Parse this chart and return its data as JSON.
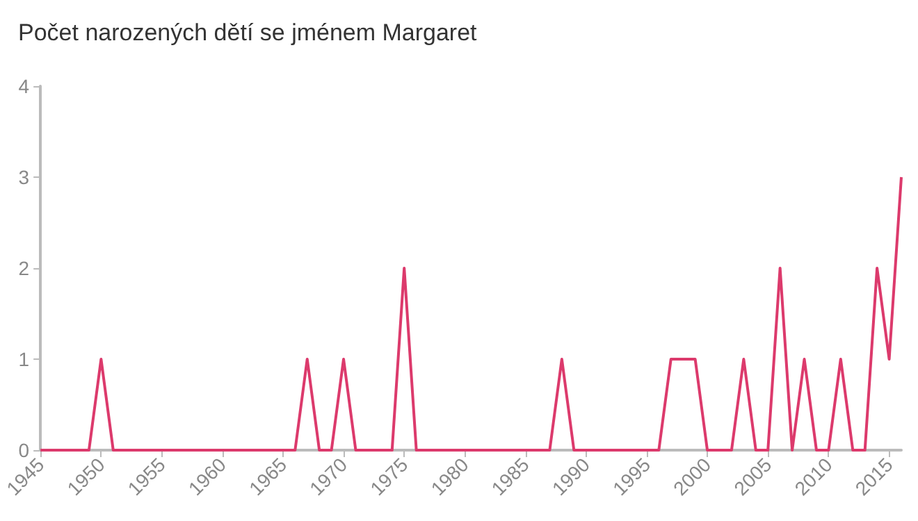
{
  "chart_data": {
    "type": "line",
    "title": "Počet narozených dětí se jménem Margaret",
    "x": [
      1945,
      1946,
      1947,
      1948,
      1949,
      1950,
      1951,
      1952,
      1953,
      1954,
      1955,
      1956,
      1957,
      1958,
      1959,
      1960,
      1961,
      1962,
      1963,
      1964,
      1965,
      1966,
      1967,
      1968,
      1969,
      1970,
      1971,
      1972,
      1973,
      1974,
      1975,
      1976,
      1977,
      1978,
      1979,
      1980,
      1981,
      1982,
      1983,
      1984,
      1985,
      1986,
      1987,
      1988,
      1989,
      1990,
      1991,
      1992,
      1993,
      1994,
      1995,
      1996,
      1997,
      1998,
      1999,
      2000,
      2001,
      2002,
      2003,
      2004,
      2005,
      2006,
      2007,
      2008,
      2009,
      2010,
      2011,
      2012,
      2013,
      2014,
      2015,
      2016
    ],
    "series": [
      {
        "color": "#dc3a6c",
        "values": [
          0,
          0,
          0,
          0,
          0,
          1,
          0,
          0,
          0,
          0,
          0,
          0,
          0,
          0,
          0,
          0,
          0,
          0,
          0,
          0,
          0,
          0,
          1,
          0,
          0,
          1,
          0,
          0,
          0,
          0,
          2,
          0,
          0,
          0,
          0,
          0,
          0,
          0,
          0,
          0,
          0,
          0,
          0,
          1,
          0,
          0,
          0,
          0,
          0,
          0,
          0,
          0,
          1,
          1,
          1,
          0,
          0,
          0,
          1,
          0,
          0,
          2,
          0,
          1,
          0,
          0,
          1,
          0,
          0,
          2,
          1,
          3
        ]
      }
    ],
    "xlim": [
      1945,
      2016
    ],
    "xticks": [
      1945,
      1950,
      1955,
      1960,
      1965,
      1970,
      1975,
      1980,
      1985,
      1990,
      1995,
      2000,
      2005,
      2010,
      2015
    ],
    "ylim": [
      0,
      4
    ],
    "yticks": [
      0,
      1,
      2,
      3,
      4
    ],
    "marker": "none",
    "line_style": "solid"
  }
}
